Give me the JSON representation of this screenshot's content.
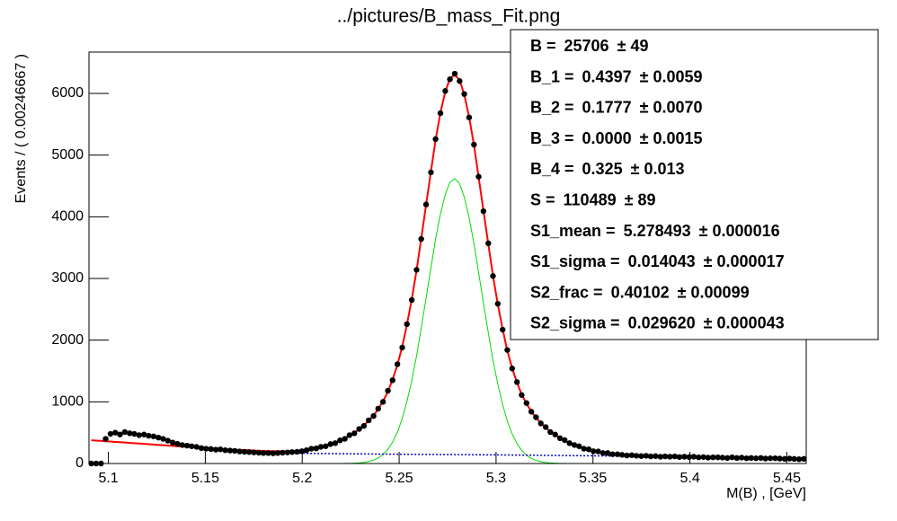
{
  "chart_data": {
    "type": "scatter",
    "title": "../pictures/B_mass_Fit.png",
    "x_label": "M(B) , [GeV]",
    "y_label": "Events / ( 0.00246667 )",
    "xlim": [
      5.09,
      5.46
    ],
    "ylim": [
      0,
      6670
    ],
    "xticks": [
      5.1,
      5.15,
      5.2,
      5.25,
      5.3,
      5.35,
      5.4,
      5.45
    ],
    "yticks": [
      0,
      1000,
      2000,
      3000,
      4000,
      5000,
      6000
    ],
    "x": [
      5.0912,
      5.0937,
      5.0962,
      5.0986,
      5.1011,
      5.1036,
      5.106,
      5.1085,
      5.111,
      5.1134,
      5.1159,
      5.1184,
      5.1208,
      5.1233,
      5.1258,
      5.1282,
      5.1307,
      5.1332,
      5.1356,
      5.1381,
      5.1406,
      5.143,
      5.1455,
      5.148,
      5.1504,
      5.1529,
      5.1554,
      5.1578,
      5.1603,
      5.1628,
      5.1652,
      5.1677,
      5.1702,
      5.1726,
      5.1751,
      5.1776,
      5.18,
      5.1825,
      5.185,
      5.1874,
      5.1899,
      5.1924,
      5.1948,
      5.1973,
      5.1998,
      5.2022,
      5.2047,
      5.2072,
      5.2096,
      5.2121,
      5.2146,
      5.217,
      5.2195,
      5.222,
      5.2244,
      5.2269,
      5.2294,
      5.2318,
      5.2343,
      5.2368,
      5.2392,
      5.2417,
      5.2442,
      5.2466,
      5.2491,
      5.2516,
      5.254,
      5.2565,
      5.259,
      5.2614,
      5.2639,
      5.2664,
      5.2688,
      5.2713,
      5.2738,
      5.2762,
      5.2787,
      5.2812,
      5.2836,
      5.2861,
      5.2886,
      5.291,
      5.2935,
      5.296,
      5.2984,
      5.3009,
      5.3034,
      5.3058,
      5.3083,
      5.3108,
      5.3132,
      5.3157,
      5.3182,
      5.3206,
      5.3231,
      5.3256,
      5.328,
      5.3305,
      5.333,
      5.3354,
      5.3379,
      5.3404,
      5.3428,
      5.3453,
      5.3478,
      5.3502,
      5.3527,
      5.3552,
      5.3576,
      5.3601,
      5.3626,
      5.365,
      5.3675,
      5.37,
      5.3724,
      5.3749,
      5.3774,
      5.3798,
      5.3823,
      5.3848,
      5.3872,
      5.3897,
      5.3922,
      5.3946,
      5.3971,
      5.3996,
      5.402,
      5.4045,
      5.407,
      5.4094,
      5.4119,
      5.4144,
      5.4168,
      5.4193,
      5.4218,
      5.4242,
      5.4267,
      5.4292,
      5.4316,
      5.4341,
      5.4366,
      5.439,
      5.4415,
      5.444,
      5.4464,
      5.4489,
      5.4514,
      5.4538,
      5.4563,
      5.4588
    ],
    "series": [
      {
        "mode": "markers",
        "color": "#000000",
        "values": [
          0,
          0,
          0,
          400,
          480,
          500,
          470,
          510,
          490,
          480,
          460,
          470,
          450,
          440,
          420,
          400,
          370,
          340,
          320,
          300,
          290,
          280,
          270,
          250,
          240,
          235,
          225,
          230,
          215,
          210,
          205,
          195,
          190,
          185,
          180,
          175,
          170,
          170,
          165,
          170,
          175,
          180,
          185,
          190,
          200,
          215,
          240,
          245,
          270,
          280,
          315,
          330,
          375,
          400,
          460,
          490,
          560,
          610,
          700,
          770,
          890,
          1000,
          1180,
          1350,
          1610,
          1880,
          2260,
          2650,
          3140,
          3640,
          4200,
          4720,
          5260,
          5680,
          6040,
          6230,
          6320,
          6200,
          5990,
          5610,
          5170,
          4650,
          4090,
          3570,
          3040,
          2590,
          2170,
          1840,
          1540,
          1320,
          1110,
          980,
          840,
          750,
          650,
          590,
          510,
          470,
          410,
          380,
          330,
          300,
          280,
          240,
          230,
          200,
          195,
          170,
          170,
          150,
          150,
          140,
          130,
          135,
          125,
          120,
          125,
          115,
          120,
          110,
          115,
          110,
          115,
          105,
          110,
          105,
          110,
          100,
          105,
          95,
          100,
          100,
          95,
          90,
          100,
          90,
          95,
          85,
          90,
          85,
          90,
          80,
          85,
          85,
          80,
          75,
          80,
          75,
          70,
          75
        ]
      },
      {
        "mode": "line",
        "color": "#00dd00",
        "width": 1,
        "values": [
          0,
          0,
          0,
          0,
          0,
          0,
          0,
          0,
          0,
          0,
          0,
          0,
          0,
          0,
          0,
          0,
          0,
          0,
          0,
          0,
          0,
          0,
          0,
          0,
          0,
          0,
          0,
          0,
          0,
          0,
          0,
          0,
          0,
          0,
          0,
          0,
          0,
          0,
          0,
          0,
          0,
          0,
          0,
          0,
          0,
          0,
          0,
          0,
          0,
          0,
          0,
          0,
          0,
          1,
          2,
          5,
          10,
          18,
          32,
          54,
          90,
          146,
          228,
          346,
          508,
          727,
          1003,
          1344,
          1745,
          2197,
          2681,
          3173,
          3640,
          4047,
          4363,
          4560,
          4620,
          4537,
          4320,
          3987,
          3568,
          3095,
          2603,
          2122,
          1677,
          1284,
          955,
          687,
          480,
          324,
          213,
          135,
          83,
          50,
          29,
          16,
          9,
          5,
          2,
          1,
          0,
          0,
          0,
          0,
          0,
          0,
          0,
          0,
          0,
          0,
          0,
          0,
          0,
          0,
          0,
          0,
          0,
          0,
          0,
          0,
          0,
          0,
          0,
          0,
          0,
          0,
          0,
          0,
          0,
          0,
          0,
          0,
          0,
          0,
          0,
          0,
          0,
          0,
          0,
          0,
          0,
          0,
          0,
          0,
          0,
          0,
          0,
          0,
          0,
          0
        ]
      },
      {
        "mode": "line",
        "color": "#0000cc",
        "width": 1.5,
        "dash": "dotted",
        "values": [
          377,
          372,
          367,
          361,
          356,
          350,
          345,
          340,
          334,
          329,
          324,
          318,
          313,
          308,
          302,
          297,
          292,
          286,
          281,
          276,
          270,
          265,
          260,
          254,
          248,
          244,
          240,
          236,
          232,
          227,
          223,
          219,
          215,
          211,
          207,
          202,
          198,
          194,
          190,
          186,
          181,
          177,
          173,
          169,
          165,
          165,
          164,
          163,
          162,
          162,
          161,
          160,
          159,
          159,
          158,
          157,
          156,
          156,
          155,
          154,
          153,
          153,
          152,
          151,
          150,
          150,
          149,
          149,
          148,
          148,
          147,
          147,
          146,
          146,
          145,
          145,
          144,
          144,
          143,
          143,
          142,
          142,
          141,
          141,
          140,
          140,
          139,
          138,
          137,
          137,
          136,
          135,
          134,
          134,
          133,
          132,
          131,
          131,
          130,
          129,
          128,
          128,
          127,
          126,
          125,
          125,
          124,
          123,
          122,
          122,
          121,
          120,
          119,
          119,
          118,
          117,
          116,
          116,
          115,
          114,
          113,
          113,
          112,
          111,
          110,
          109,
          107,
          106,
          104,
          103,
          101,
          100,
          98,
          97,
          96,
          94,
          93,
          91,
          90,
          88,
          87,
          85,
          84,
          83,
          81,
          80,
          78,
          77,
          75,
          74
        ]
      },
      {
        "mode": "line",
        "color": "#ff0000",
        "width": 2,
        "values": [
          377,
          372,
          367,
          361,
          356,
          350,
          345,
          340,
          334,
          329,
          324,
          318,
          313,
          308,
          302,
          297,
          292,
          286,
          281,
          276,
          270,
          265,
          260,
          254,
          248,
          244,
          240,
          236,
          232,
          227,
          223,
          221,
          217,
          214,
          211,
          207,
          204,
          202,
          200,
          200,
          198,
          199,
          201,
          205,
          210,
          221,
          233,
          248,
          265,
          286,
          310,
          338,
          370,
          409,
          450,
          499,
          554,
          618,
          692,
          778,
          882,
          1010,
          1166,
          1359,
          1598,
          1895,
          2247,
          2661,
          3132,
          3649,
          4192,
          4736,
          5246,
          5688,
          6028,
          6240,
          6304,
          6215,
          5980,
          5620,
          5164,
          4645,
          4099,
          3557,
          3045,
          2581,
          2176,
          1830,
          1545,
          1311,
          1123,
          969,
          844,
          743,
          657,
          583,
          520,
          465,
          415,
          372,
          333,
          301,
          272,
          247,
          225,
          207,
          191,
          177,
          165,
          156,
          148,
          141,
          136,
          132,
          128,
          125,
          122,
          121,
          119,
          117,
          115,
          115,
          113,
          112,
          110,
          109,
          107,
          106,
          104,
          103,
          101,
          100,
          98,
          97,
          96,
          94,
          93,
          91,
          90,
          88,
          87,
          85,
          84,
          83,
          81,
          80,
          78,
          77,
          75,
          74
        ]
      }
    ],
    "fit_parameters": [
      {
        "name": "B =",
        "value": "25706",
        "uncertainty": "± 49"
      },
      {
        "name": "B_1 =",
        "value": "0.4397",
        "uncertainty": "± 0.0059"
      },
      {
        "name": "B_2 =",
        "value": "0.1777",
        "uncertainty": "± 0.0070"
      },
      {
        "name": "B_3 =",
        "value": "0.0000",
        "uncertainty": "± 0.0015"
      },
      {
        "name": "B_4 =",
        "value": "0.325",
        "uncertainty": "± 0.013"
      },
      {
        "name": "S =",
        "value": "110489",
        "uncertainty": "± 89"
      },
      {
        "name": "S1_mean =",
        "value": "5.278493",
        "uncertainty": "± 0.000016"
      },
      {
        "name": "S1_sigma =",
        "value": "0.014043",
        "uncertainty": "± 0.000017"
      },
      {
        "name": "S2_frac =",
        "value": "0.40102",
        "uncertainty": "± 0.00099"
      },
      {
        "name": "S2_sigma =",
        "value": "0.029620",
        "uncertainty": "± 0.000043"
      }
    ]
  }
}
